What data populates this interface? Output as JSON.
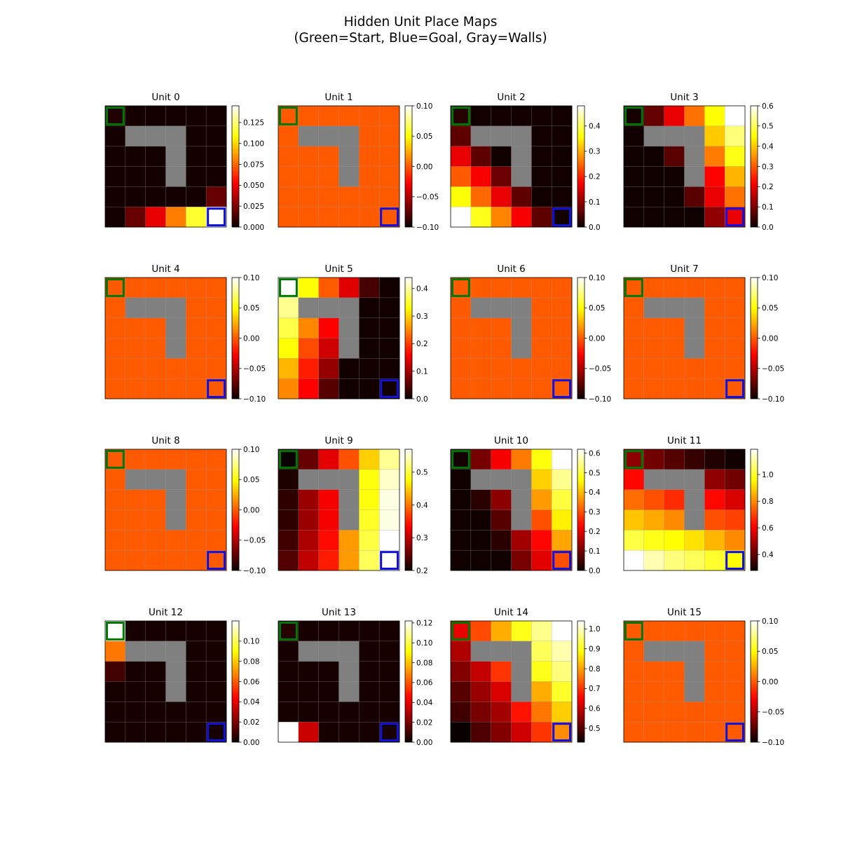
{
  "figure": {
    "title": "Hidden Unit Place Maps\n(Green=Start, Blue=Goal, Gray=Walls)"
  },
  "colors": {
    "wall": "#808080",
    "start_outline": "#007700",
    "goal_outline": "#1111dd",
    "grid_line": "#999999",
    "colormap": "hot"
  },
  "grid": {
    "rows": 6,
    "cols": 6,
    "walls": [
      [
        1,
        1
      ],
      [
        1,
        2
      ],
      [
        1,
        3
      ],
      [
        2,
        3
      ],
      [
        3,
        3
      ]
    ],
    "start": [
      0,
      0
    ],
    "goal": [
      5,
      5
    ]
  },
  "chart_data": [
    {
      "type": "heatmap",
      "title": "Unit 0",
      "clim": [
        0,
        0.145
      ],
      "ticks": [
        0,
        0.025,
        0.05,
        0.075,
        0.1,
        0.125
      ],
      "tick_labels": [
        "0.000",
        "0.025",
        "0.050",
        "0.075",
        "0.100",
        "0.125"
      ],
      "values": [
        [
          0.005,
          0.002,
          0.002,
          0.002,
          0.002,
          0.002
        ],
        [
          0.002,
          null,
          null,
          null,
          0.002,
          0.002
        ],
        [
          0.002,
          0.002,
          0.002,
          null,
          0.002,
          0.002
        ],
        [
          0.002,
          0.002,
          0.002,
          null,
          0.002,
          0.002
        ],
        [
          0.002,
          0.002,
          0.002,
          0.002,
          0.002,
          0.02
        ],
        [
          0.002,
          0.02,
          0.048,
          0.08,
          0.115,
          0.145
        ]
      ]
    },
    {
      "type": "heatmap",
      "title": "Unit 1",
      "clim": [
        -0.1,
        0.1
      ],
      "ticks": [
        -0.1,
        -0.05,
        0,
        0.05,
        0.1
      ],
      "tick_labels": [
        "−0.10",
        "−0.05",
        "0.00",
        "0.05",
        "0.10"
      ],
      "values": [
        [
          0,
          0,
          0,
          0,
          0,
          0
        ],
        [
          0,
          null,
          null,
          null,
          0,
          0
        ],
        [
          0,
          0,
          0,
          null,
          0,
          0
        ],
        [
          0,
          0,
          0,
          null,
          0,
          0
        ],
        [
          0,
          0,
          0,
          0,
          0,
          0
        ],
        [
          0,
          0,
          0,
          0,
          0,
          0
        ]
      ]
    },
    {
      "type": "heatmap",
      "title": "Unit 2",
      "clim": [
        0,
        0.48
      ],
      "ticks": [
        0,
        0.1,
        0.2,
        0.3,
        0.4
      ],
      "tick_labels": [
        "0.0",
        "0.1",
        "0.2",
        "0.3",
        "0.4"
      ],
      "values": [
        [
          0.02,
          0.005,
          0.005,
          0.005,
          0.005,
          0.005
        ],
        [
          0.06,
          null,
          null,
          null,
          0.005,
          0.005
        ],
        [
          0.16,
          0.06,
          0.005,
          null,
          0.005,
          0.005
        ],
        [
          0.24,
          0.17,
          0.07,
          null,
          0.005,
          0.005
        ],
        [
          0.36,
          0.25,
          0.16,
          0.06,
          0.005,
          0.005
        ],
        [
          0.48,
          0.37,
          0.27,
          0.17,
          0.06,
          0.005
        ]
      ]
    },
    {
      "type": "heatmap",
      "title": "Unit 3",
      "clim": [
        0,
        0.6
      ],
      "ticks": [
        0,
        0.1,
        0.2,
        0.3,
        0.4,
        0.5,
        0.6
      ],
      "tick_labels": [
        "0.0",
        "0.1",
        "0.2",
        "0.3",
        "0.4",
        "0.5",
        "0.6"
      ],
      "values": [
        [
          0.01,
          0.08,
          0.2,
          0.32,
          0.45,
          0.6
        ],
        [
          0.005,
          null,
          null,
          null,
          0.4,
          0.52
        ],
        [
          0.005,
          0.005,
          0.07,
          null,
          0.33,
          0.46
        ],
        [
          0.005,
          0.005,
          0.005,
          null,
          0.22,
          0.38
        ],
        [
          0.005,
          0.005,
          0.005,
          0.07,
          0.2,
          0.32
        ],
        [
          0.005,
          0.005,
          0.005,
          0.005,
          0.12,
          0.2
        ]
      ]
    },
    {
      "type": "heatmap",
      "title": "Unit 4",
      "clim": [
        -0.1,
        0.1
      ],
      "ticks": [
        -0.1,
        -0.05,
        0,
        0.05,
        0.1
      ],
      "tick_labels": [
        "−0.10",
        "−0.05",
        "0.00",
        "0.05",
        "0.10"
      ],
      "values": [
        [
          0,
          0,
          0,
          0,
          0,
          0
        ],
        [
          0,
          null,
          null,
          null,
          0,
          0
        ],
        [
          0,
          0,
          0,
          null,
          0,
          0
        ],
        [
          0,
          0,
          0,
          null,
          0,
          0
        ],
        [
          0,
          0,
          0,
          0,
          0,
          0
        ],
        [
          0,
          0,
          0,
          0,
          0,
          0
        ]
      ]
    },
    {
      "type": "heatmap",
      "title": "Unit 5",
      "clim": [
        0,
        0.44
      ],
      "ticks": [
        0,
        0.1,
        0.2,
        0.3,
        0.4
      ],
      "tick_labels": [
        "0.0",
        "0.1",
        "0.2",
        "0.3",
        "0.4"
      ],
      "values": [
        [
          0.44,
          0.33,
          0.22,
          0.14,
          0.04,
          0.005
        ],
        [
          0.39,
          null,
          null,
          null,
          0.005,
          0.005
        ],
        [
          0.36,
          0.25,
          0.16,
          null,
          0.005,
          0.005
        ],
        [
          0.33,
          0.21,
          0.13,
          null,
          0.005,
          0.005
        ],
        [
          0.28,
          0.18,
          0.09,
          0.005,
          0.005,
          0.005
        ],
        [
          0.25,
          0.16,
          0.05,
          0.005,
          0.005,
          0.005
        ]
      ]
    },
    {
      "type": "heatmap",
      "title": "Unit 6",
      "clim": [
        -0.1,
        0.1
      ],
      "ticks": [
        -0.1,
        -0.05,
        0,
        0.05,
        0.1
      ],
      "tick_labels": [
        "−0.10",
        "−0.05",
        "0.00",
        "0.05",
        "0.10"
      ],
      "values": [
        [
          0,
          0,
          0,
          0,
          0,
          0
        ],
        [
          0,
          null,
          null,
          null,
          0,
          0
        ],
        [
          0,
          0,
          0,
          null,
          0,
          0
        ],
        [
          0,
          0,
          0,
          null,
          0,
          0
        ],
        [
          0,
          0,
          0,
          0,
          0,
          0
        ],
        [
          0,
          0,
          0,
          0,
          0,
          0
        ]
      ]
    },
    {
      "type": "heatmap",
      "title": "Unit 7",
      "clim": [
        -0.1,
        0.1
      ],
      "ticks": [
        -0.1,
        -0.05,
        0,
        0.05,
        0.1
      ],
      "tick_labels": [
        "−0.10",
        "−0.05",
        "0.00",
        "0.05",
        "0.10"
      ],
      "values": [
        [
          0,
          0,
          0,
          0,
          0,
          0
        ],
        [
          0,
          null,
          null,
          null,
          0,
          0
        ],
        [
          0,
          0,
          0,
          null,
          0,
          0
        ],
        [
          0,
          0,
          0,
          null,
          0,
          0
        ],
        [
          0,
          0,
          0,
          0,
          0,
          0
        ],
        [
          0,
          0,
          0,
          0,
          0,
          0
        ]
      ]
    },
    {
      "type": "heatmap",
      "title": "Unit 8",
      "clim": [
        -0.1,
        0.1
      ],
      "ticks": [
        -0.1,
        -0.05,
        0,
        0.05,
        0.1
      ],
      "tick_labels": [
        "−0.10",
        "−0.05",
        "0.00",
        "0.05",
        "0.10"
      ],
      "values": [
        [
          0,
          0,
          0,
          0,
          0,
          0
        ],
        [
          0,
          null,
          null,
          null,
          0,
          0
        ],
        [
          0,
          0,
          0,
          null,
          0,
          0
        ],
        [
          0,
          0,
          0,
          null,
          0,
          0
        ],
        [
          0,
          0,
          0,
          0,
          0,
          0
        ],
        [
          0,
          0,
          0,
          0,
          0,
          0
        ]
      ]
    },
    {
      "type": "heatmap",
      "title": "Unit 9",
      "clim": [
        0.2,
        0.57
      ],
      "ticks": [
        0.2,
        0.3,
        0.4,
        0.5
      ],
      "tick_labels": [
        "0.2",
        "0.3",
        "0.4",
        "0.5"
      ],
      "values": [
        [
          0.2,
          0.25,
          0.32,
          0.38,
          0.45,
          0.53
        ],
        [
          0.21,
          null,
          null,
          null,
          0.48,
          0.55
        ],
        [
          0.22,
          0.28,
          0.33,
          null,
          0.48,
          0.56
        ],
        [
          0.22,
          0.28,
          0.33,
          null,
          0.49,
          0.56
        ],
        [
          0.23,
          0.29,
          0.34,
          0.42,
          0.5,
          0.57
        ],
        [
          0.24,
          0.3,
          0.35,
          0.42,
          0.51,
          0.57
        ]
      ]
    },
    {
      "type": "heatmap",
      "title": "Unit 10",
      "clim": [
        0,
        0.62
      ],
      "ticks": [
        0,
        0.1,
        0.2,
        0.3,
        0.4,
        0.5,
        0.6
      ],
      "tick_labels": [
        "0.0",
        "0.1",
        "0.2",
        "0.3",
        "0.4",
        "0.5",
        "0.6"
      ],
      "values": [
        [
          0.01,
          0.1,
          0.22,
          0.34,
          0.47,
          0.62
        ],
        [
          0.005,
          null,
          null,
          null,
          0.42,
          0.55
        ],
        [
          0.005,
          0.03,
          0.12,
          null,
          0.37,
          0.5
        ],
        [
          0.005,
          0.005,
          0.07,
          null,
          0.3,
          0.45
        ],
        [
          0.005,
          0.005,
          0.03,
          0.14,
          0.23,
          0.38
        ],
        [
          0.005,
          0.005,
          0.005,
          0.1,
          0.2,
          0.3
        ]
      ]
    },
    {
      "type": "heatmap",
      "title": "Unit 11",
      "clim": [
        0.28,
        1.19
      ],
      "ticks": [
        0.4,
        0.6,
        0.8,
        1.0
      ],
      "tick_labels": [
        "0.4",
        "0.6",
        "0.8",
        "1.0"
      ],
      "values": [
        [
          0.46,
          0.42,
          0.38,
          0.34,
          0.31,
          0.29
        ],
        [
          0.62,
          null,
          null,
          null,
          0.46,
          0.42
        ],
        [
          0.76,
          0.72,
          0.67,
          null,
          0.62,
          0.56
        ],
        [
          0.88,
          0.84,
          0.8,
          null,
          0.72,
          0.7
        ],
        [
          1.02,
          0.98,
          0.96,
          0.92,
          0.86,
          0.8
        ],
        [
          1.19,
          1.12,
          1.07,
          1.04,
          1.0,
          0.96
        ]
      ]
    },
    {
      "type": "heatmap",
      "title": "Unit 12",
      "clim": [
        0,
        0.12
      ],
      "ticks": [
        0,
        0.02,
        0.04,
        0.06,
        0.08,
        0.1
      ],
      "tick_labels": [
        "0.00",
        "0.02",
        "0.04",
        "0.06",
        "0.08",
        "0.10"
      ],
      "values": [
        [
          0.12,
          0.002,
          0.002,
          0.002,
          0.002,
          0.002
        ],
        [
          0.065,
          null,
          null,
          null,
          0.002,
          0.002
        ],
        [
          0.01,
          0.002,
          0.002,
          null,
          0.002,
          0.002
        ],
        [
          0.002,
          0.002,
          0.002,
          null,
          0.002,
          0.002
        ],
        [
          0.002,
          0.002,
          0.002,
          0.002,
          0.002,
          0.002
        ],
        [
          0.002,
          0.002,
          0.002,
          0.002,
          0.002,
          0.002
        ]
      ]
    },
    {
      "type": "heatmap",
      "title": "Unit 13",
      "clim": [
        0,
        0.122
      ],
      "ticks": [
        0,
        0.02,
        0.04,
        0.06,
        0.08,
        0.1,
        0.12
      ],
      "tick_labels": [
        "0.00",
        "0.02",
        "0.04",
        "0.06",
        "0.08",
        "0.10",
        "0.12"
      ],
      "values": [
        [
          0.005,
          0.002,
          0.002,
          0.002,
          0.002,
          0.002
        ],
        [
          0.002,
          null,
          null,
          null,
          0.002,
          0.002
        ],
        [
          0.002,
          0.002,
          0.002,
          null,
          0.002,
          0.002
        ],
        [
          0.002,
          0.002,
          0.002,
          null,
          0.002,
          0.002
        ],
        [
          0.002,
          0.002,
          0.002,
          0.002,
          0.002,
          0.002
        ],
        [
          0.122,
          0.035,
          0.002,
          0.002,
          0.002,
          0.002
        ]
      ]
    },
    {
      "type": "heatmap",
      "title": "Unit 14",
      "clim": [
        0.43,
        1.04
      ],
      "ticks": [
        0.5,
        0.6,
        0.7,
        0.8,
        0.9,
        1.0
      ],
      "tick_labels": [
        "0.5",
        "0.6",
        "0.7",
        "0.8",
        "0.9",
        "1.0"
      ],
      "values": [
        [
          0.63,
          0.72,
          0.81,
          0.9,
          0.97,
          1.04
        ],
        [
          0.58,
          null,
          null,
          null,
          0.94,
          0.99
        ],
        [
          0.54,
          0.6,
          0.7,
          null,
          0.9,
          0.96
        ],
        [
          0.5,
          0.56,
          0.62,
          null,
          0.81,
          0.91
        ],
        [
          0.48,
          0.53,
          0.57,
          0.67,
          0.76,
          0.84
        ],
        [
          0.43,
          0.49,
          0.54,
          0.61,
          0.7,
          0.78
        ]
      ]
    },
    {
      "type": "heatmap",
      "title": "Unit 15",
      "clim": [
        -0.1,
        0.1
      ],
      "ticks": [
        -0.1,
        -0.05,
        0,
        0.05,
        0.1
      ],
      "tick_labels": [
        "−0.10",
        "−0.05",
        "0.00",
        "0.05",
        "0.10"
      ],
      "values": [
        [
          0,
          0,
          0,
          0,
          0,
          0
        ],
        [
          0,
          null,
          null,
          null,
          0,
          0
        ],
        [
          0,
          0,
          0,
          null,
          0,
          0
        ],
        [
          0,
          0,
          0,
          null,
          0,
          0
        ],
        [
          0,
          0,
          0,
          0,
          0,
          0
        ],
        [
          0,
          0,
          0,
          0,
          0,
          0
        ]
      ]
    }
  ]
}
